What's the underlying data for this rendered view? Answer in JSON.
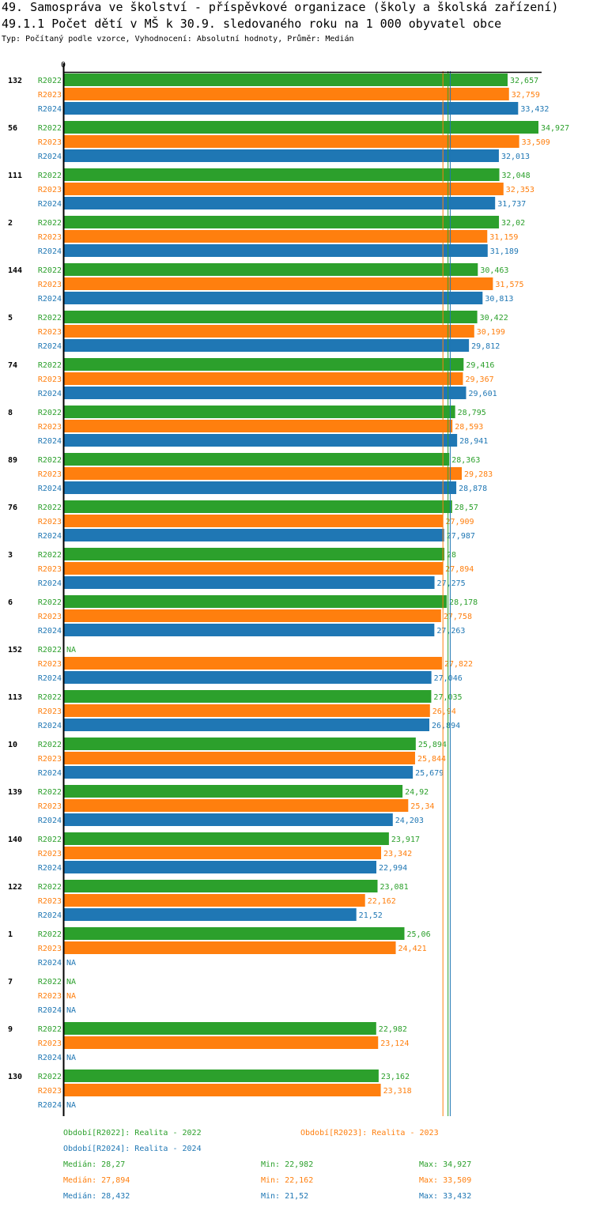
{
  "title": "49. Samospráva ve školství - příspěvkové organizace (školy a školská zařízení)",
  "subtitle": "49.1.1 Počet dětí v MŠ k 30.9. sledovaného roku na 1 000 obyvatel obce",
  "info": "Typ: Počítaný podle vzorce, Vyhodnocení: Absolutní hodnoty, Průměr: Medián",
  "chart_data": {
    "type": "bar",
    "orientation": "horizontal",
    "x_tick_label": "0",
    "xlim": [
      0,
      35
    ],
    "categories": [
      "132",
      "56",
      "111",
      "2",
      "144",
      "5",
      "74",
      "8",
      "89",
      "76",
      "3",
      "6",
      "152",
      "113",
      "10",
      "139",
      "140",
      "122",
      "1",
      "7",
      "9",
      "130"
    ],
    "series": [
      {
        "name": "R2022",
        "color": "#2ca02c",
        "values": [
          32.657,
          34.927,
          32.048,
          32.02,
          30.463,
          30.422,
          29.416,
          28.795,
          28.363,
          28.57,
          28,
          28.178,
          null,
          27.035,
          25.894,
          24.92,
          23.917,
          23.081,
          25.06,
          null,
          22.982,
          23.162
        ],
        "labels": [
          "32,657",
          "34,927",
          "32,048",
          "32,02",
          "30,463",
          "30,422",
          "29,416",
          "28,795",
          "28,363",
          "28,57",
          "28",
          "28,178",
          "NA",
          "27,035",
          "25,894",
          "24,92",
          "23,917",
          "23,081",
          "25,06",
          "NA",
          "22,982",
          "23,162"
        ]
      },
      {
        "name": "R2023",
        "color": "#ff7f0e",
        "values": [
          32.759,
          33.509,
          32.353,
          31.159,
          31.575,
          30.199,
          29.367,
          28.593,
          29.283,
          27.909,
          27.894,
          27.758,
          27.822,
          26.94,
          25.844,
          25.34,
          23.342,
          22.162,
          24.421,
          null,
          23.124,
          23.318
        ],
        "labels": [
          "32,759",
          "33,509",
          "32,353",
          "31,159",
          "31,575",
          "30,199",
          "29,367",
          "28,593",
          "29,283",
          "27,909",
          "27,894",
          "27,758",
          "27,822",
          "26,94",
          "25,844",
          "25,34",
          "23,342",
          "22,162",
          "24,421",
          "NA",
          "23,124",
          "23,318"
        ]
      },
      {
        "name": "R2024",
        "color": "#1f77b4",
        "values": [
          33.432,
          32.013,
          31.737,
          31.189,
          30.813,
          29.812,
          29.601,
          28.941,
          28.878,
          27.987,
          27.275,
          27.263,
          27.046,
          26.894,
          25.679,
          24.203,
          22.994,
          21.52,
          null,
          null,
          null,
          null
        ],
        "labels": [
          "33,432",
          "32,013",
          "31,737",
          "31,189",
          "30,813",
          "29,812",
          "29,601",
          "28,941",
          "28,878",
          "27,987",
          "27,275",
          "27,263",
          "27,046",
          "26,894",
          "25,679",
          "24,203",
          "22,994",
          "21,52",
          "NA",
          "NA",
          "NA",
          "NA"
        ]
      }
    ],
    "median_lines": {
      "R2022": 28.27,
      "R2023": 27.894,
      "R2024": 28.432
    }
  },
  "legend": {
    "r2022": "Období[R2022]: Realita - 2022",
    "r2023": "Období[R2023]: Realita - 2023",
    "r2024": "Období[R2024]: Realita - 2024"
  },
  "stats": [
    {
      "median": "Medián: 28,27",
      "min": "Min: 22,982",
      "max": "Max: 34,927",
      "color": "#2ca02c"
    },
    {
      "median": "Medián: 27,894",
      "min": "Min: 22,162",
      "max": "Max: 33,509",
      "color": "#ff7f0e"
    },
    {
      "median": "Medián: 28,432",
      "min": "Min: 21,52",
      "max": "Max: 33,432",
      "color": "#1f77b4"
    }
  ]
}
